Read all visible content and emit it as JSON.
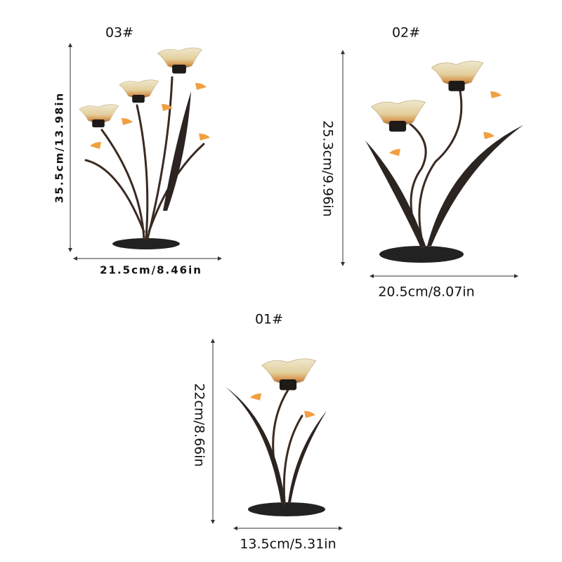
{
  "products": [
    {
      "label": "03#",
      "height": "35.5cm/13.98in",
      "width": "21.5cm/8.46in"
    },
    {
      "label": "02#",
      "height": "25.3cm/9.96in",
      "width": "20.5cm/8.07in"
    },
    {
      "label": "01#",
      "height": "22cm/8.66in",
      "width": "13.5cm/5.31in"
    }
  ]
}
